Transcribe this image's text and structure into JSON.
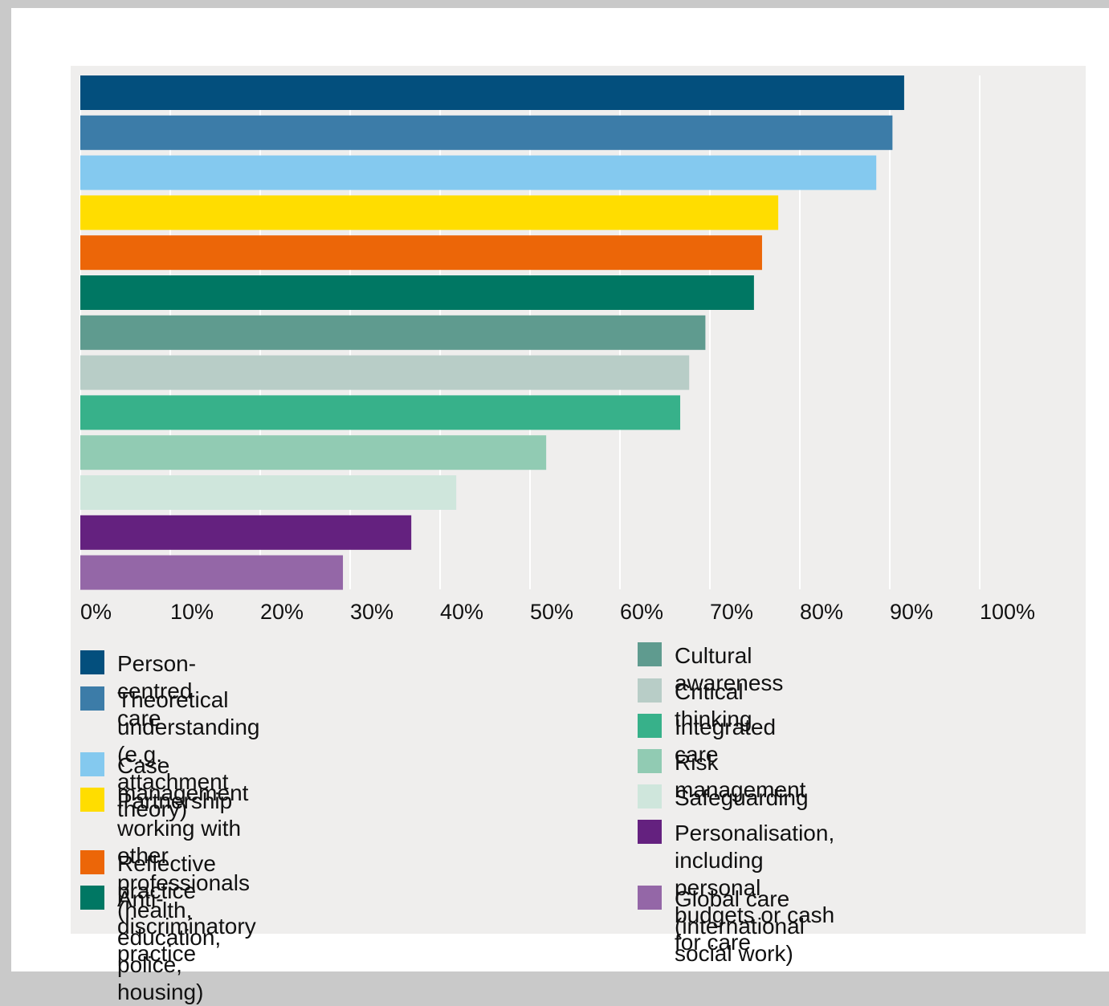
{
  "chart_data": {
    "type": "bar",
    "orientation": "horizontal",
    "categories": [
      "Person-centred care",
      "Theoretical understanding (e.g. attachment theory)",
      "Case management",
      "Partnership working with other professionals (health, education, police, housing)",
      "Reflective practice",
      "Anti-discriminatory practice",
      "Cultural awareness",
      "Critical thinking",
      "Integrated care",
      "Risk management",
      "Safeguarding",
      "Personalisation, including personal budgets or cash for care",
      "Global care (international social work)"
    ],
    "values": [
      91.6,
      90.3,
      88.5,
      77.6,
      75.8,
      74.9,
      69.5,
      67.7,
      66.7,
      51.8,
      41.8,
      36.8,
      29.2
    ],
    "colors": [
      "#034f7d",
      "#3c7ca8",
      "#84c9ef",
      "#ffdd00",
      "#ec6608",
      "#007763",
      "#5f9b8f",
      "#b8cdc7",
      "#37b18a",
      "#91cbb3",
      "#cfe6dc",
      "#64217f",
      "#9467a7"
    ],
    "xlim": [
      0,
      100
    ],
    "x_ticks": [
      "0%",
      "10%",
      "20%",
      "30%",
      "40%",
      "50%",
      "60%",
      "70%",
      "80%",
      "90%",
      "100%"
    ],
    "grid": true,
    "legend_position": "bottom",
    "legend": [
      {
        "label": "Person-centred care",
        "color": "#034f7d"
      },
      {
        "label": "Theoretical understanding\n(e.g. attachment theory)",
        "color": "#3c7ca8"
      },
      {
        "label": "Case management",
        "color": "#84c9ef"
      },
      {
        "label": "Partnership working with other professionals\n(health, education, police, housing)",
        "color": "#ffdd00"
      },
      {
        "label": "Reflective practice",
        "color": "#ec6608"
      },
      {
        "label": "Anti-discriminatory practice",
        "color": "#007763"
      },
      {
        "label": "Cultural awareness",
        "color": "#5f9b8f"
      },
      {
        "label": "Critical thinking",
        "color": "#b8cdc7"
      },
      {
        "label": "Integrated care",
        "color": "#37b18a"
      },
      {
        "label": "Risk management",
        "color": "#91cbb3"
      },
      {
        "label": "Safeguarding",
        "color": "#cfe6dc"
      },
      {
        "label": "Personalisation, including personal\nbudgets or cash for care",
        "color": "#64217f"
      },
      {
        "label": "Global care (international social work)",
        "color": "#9467a7"
      }
    ]
  }
}
